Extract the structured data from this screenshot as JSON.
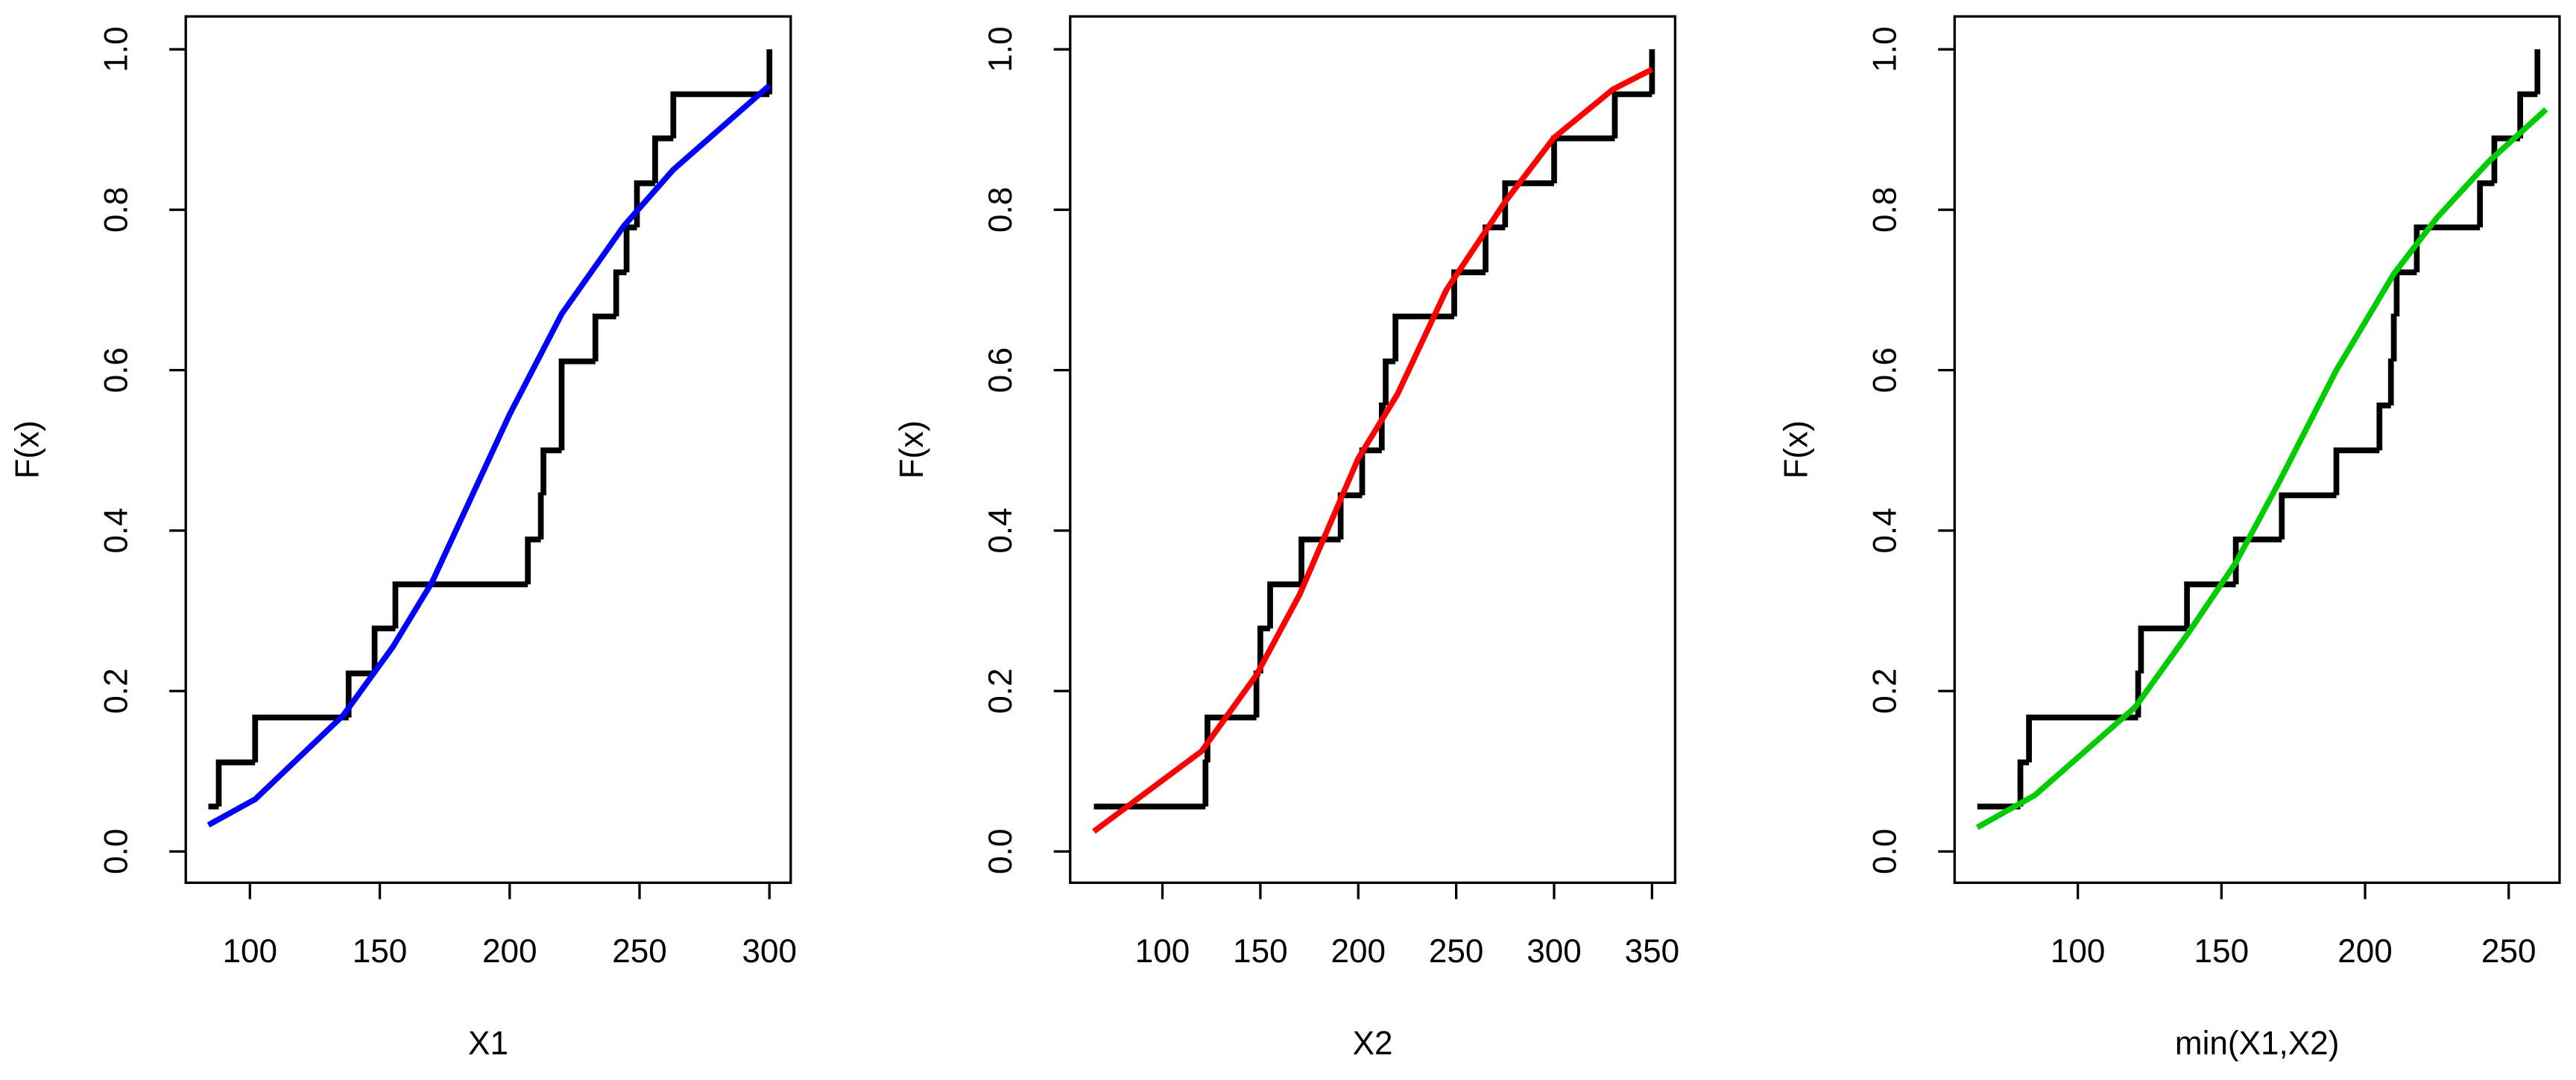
{
  "chart_data": [
    {
      "type": "ecdf",
      "xlabel": "X1",
      "ylabel": "F(x)",
      "xlim": [
        75.3,
        308.2
      ],
      "ylim": [
        -0.039,
        1.041
      ],
      "xticks": [
        100,
        150,
        200,
        250,
        300
      ],
      "yticks": [
        {
          "value": 0,
          "label": "0.0"
        },
        {
          "value": 0.2,
          "label": "0.2"
        },
        {
          "value": 0.4,
          "label": "0.4"
        },
        {
          "value": 0.6,
          "label": "0.6"
        },
        {
          "value": 0.8,
          "label": "0.8"
        },
        {
          "value": 1,
          "label": "1.0"
        }
      ],
      "ecdf": {
        "color": "#000000",
        "x": [
          84,
          88,
          102,
          138,
          148,
          156,
          207,
          212,
          213,
          220,
          220,
          233,
          241,
          245,
          249,
          256,
          263,
          300
        ],
        "values": [
          0.056,
          0.111,
          0.167,
          0.222,
          0.278,
          0.333,
          0.389,
          0.444,
          0.5,
          0.556,
          0.611,
          0.667,
          0.722,
          0.778,
          0.833,
          0.889,
          0.944,
          1
        ]
      },
      "fit": {
        "color": "#0000ff",
        "x": [
          84,
          102,
          136,
          155,
          170,
          200,
          220,
          244,
          263,
          300
        ],
        "values": [
          0.033,
          0.065,
          0.17,
          0.255,
          0.335,
          0.545,
          0.67,
          0.78,
          0.85,
          0.955
        ]
      }
    },
    {
      "type": "ecdf",
      "xlabel": "X2",
      "ylabel": "F(x)",
      "xlim": [
        52.9,
        361.8
      ],
      "ylim": [
        -0.039,
        1.041
      ],
      "xticks": [
        100,
        150,
        200,
        250,
        300,
        350
      ],
      "yticks": [
        {
          "value": 0,
          "label": "0.0"
        },
        {
          "value": 0.2,
          "label": "0.2"
        },
        {
          "value": 0.4,
          "label": "0.4"
        },
        {
          "value": 0.6,
          "label": "0.6"
        },
        {
          "value": 0.8,
          "label": "0.8"
        },
        {
          "value": 1,
          "label": "1.0"
        }
      ],
      "ecdf": {
        "color": "#000000",
        "x": [
          65,
          122,
          123,
          148,
          150,
          155,
          171,
          191,
          202,
          212,
          214,
          219,
          249,
          265,
          275,
          300,
          331,
          350
        ],
        "values": [
          0.056,
          0.111,
          0.167,
          0.222,
          0.278,
          0.333,
          0.389,
          0.444,
          0.5,
          0.556,
          0.611,
          0.667,
          0.722,
          0.778,
          0.833,
          0.889,
          0.944,
          1
        ]
      },
      "fit": {
        "color": "#ff0000",
        "x": [
          65,
          120,
          148,
          170,
          200,
          220,
          245,
          275,
          300,
          330,
          350
        ],
        "values": [
          0.025,
          0.125,
          0.22,
          0.32,
          0.49,
          0.57,
          0.7,
          0.81,
          0.89,
          0.95,
          0.975
        ]
      }
    },
    {
      "type": "ecdf",
      "xlabel": "min(X1,X2)",
      "ylabel": "F(x)",
      "xlim": [
        57.1,
        267.7
      ],
      "ylim": [
        -0.039,
        1.041
      ],
      "xticks": [
        100,
        150,
        200,
        250
      ],
      "yticks": [
        {
          "value": 0,
          "label": "0.0"
        },
        {
          "value": 0.2,
          "label": "0.2"
        },
        {
          "value": 0.4,
          "label": "0.4"
        },
        {
          "value": 0.6,
          "label": "0.6"
        },
        {
          "value": 0.8,
          "label": "0.8"
        },
        {
          "value": 1,
          "label": "1.0"
        }
      ],
      "ecdf": {
        "color": "#000000",
        "x": [
          65,
          80,
          83,
          121,
          122,
          138,
          155,
          171,
          190,
          205,
          209,
          210,
          211,
          218,
          240,
          245,
          254,
          260
        ],
        "values": [
          0.056,
          0.111,
          0.167,
          0.222,
          0.278,
          0.333,
          0.389,
          0.444,
          0.5,
          0.556,
          0.611,
          0.667,
          0.722,
          0.778,
          0.833,
          0.889,
          0.944,
          1
        ]
      },
      "fit": {
        "color": "#00cc00",
        "x": [
          65,
          85,
          120,
          138,
          155,
          170,
          190,
          210,
          225,
          243,
          263
        ],
        "values": [
          0.03,
          0.07,
          0.18,
          0.27,
          0.36,
          0.46,
          0.6,
          0.72,
          0.79,
          0.86,
          0.925
        ]
      }
    }
  ]
}
